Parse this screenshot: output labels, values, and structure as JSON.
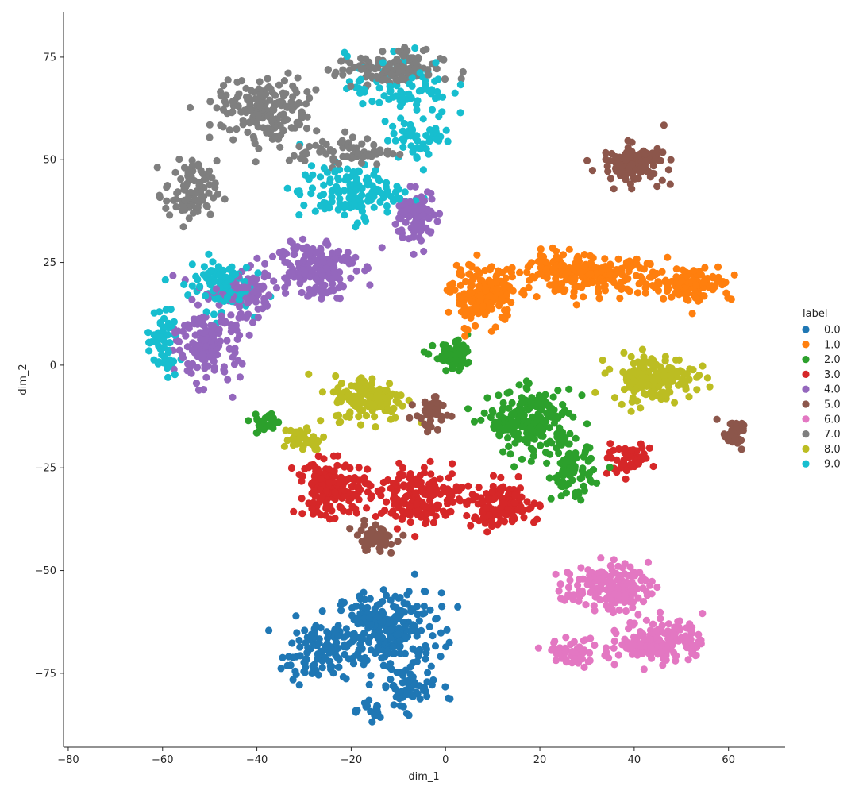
{
  "chart_data": {
    "type": "scatter",
    "title": "",
    "xlabel": "dim_1",
    "ylabel": "dim_2",
    "xlim": [
      -81,
      72
    ],
    "ylim": [
      -93,
      86
    ],
    "xticks": [
      -80,
      -60,
      -40,
      -20,
      0,
      20,
      40,
      60
    ],
    "yticks": [
      -75,
      -50,
      -25,
      0,
      25,
      50,
      75
    ],
    "grid": false,
    "legend": {
      "title": "label",
      "placement": "right"
    },
    "series": [
      {
        "name": "0.0",
        "color": "#1f77b4",
        "clusters": [
          {
            "center": [
              -12,
              -64
            ],
            "spread": [
              10,
              8
            ],
            "n": 230
          },
          {
            "center": [
              -27,
              -70
            ],
            "spread": [
              7,
              6
            ],
            "n": 110
          },
          {
            "center": [
              -8,
              -78
            ],
            "spread": [
              6,
              5
            ],
            "n": 60
          },
          {
            "center": [
              -16,
              -84
            ],
            "spread": [
              4,
              2
            ],
            "n": 20
          }
        ]
      },
      {
        "name": "1.0",
        "color": "#ff7f0e",
        "clusters": [
          {
            "center": [
              8,
              17
            ],
            "spread": [
              6,
              6
            ],
            "n": 200
          },
          {
            "center": [
              30,
              22
            ],
            "spread": [
              12,
              4
            ],
            "n": 220
          },
          {
            "center": [
              52,
              20
            ],
            "spread": [
              8,
              4
            ],
            "n": 110
          },
          {
            "center": [
              22,
              24
            ],
            "spread": [
              4,
              3
            ],
            "n": 30
          }
        ]
      },
      {
        "name": "2.0",
        "color": "#2ca02c",
        "clusters": [
          {
            "center": [
              18,
              -14
            ],
            "spread": [
              8,
              7
            ],
            "n": 220
          },
          {
            "center": [
              27,
              -26
            ],
            "spread": [
              4,
              6
            ],
            "n": 80
          },
          {
            "center": [
              2,
              2
            ],
            "spread": [
              4,
              3
            ],
            "n": 60
          },
          {
            "center": [
              -38,
              -14
            ],
            "spread": [
              3,
              3
            ],
            "n": 25
          }
        ]
      },
      {
        "name": "3.0",
        "color": "#d62728",
        "clusters": [
          {
            "center": [
              -24,
              -30
            ],
            "spread": [
              7,
              6
            ],
            "n": 170
          },
          {
            "center": [
              -5,
              -32
            ],
            "spread": [
              8,
              6
            ],
            "n": 170
          },
          {
            "center": [
              12,
              -34
            ],
            "spread": [
              7,
              5
            ],
            "n": 120
          },
          {
            "center": [
              38,
              -23
            ],
            "spread": [
              5,
              3
            ],
            "n": 50
          }
        ]
      },
      {
        "name": "4.0",
        "color": "#9467bd",
        "clusters": [
          {
            "center": [
              -28,
              24
            ],
            "spread": [
              8,
              7
            ],
            "n": 160
          },
          {
            "center": [
              -6,
              36
            ],
            "spread": [
              4,
              6
            ],
            "n": 90
          },
          {
            "center": [
              -50,
              6
            ],
            "spread": [
              6,
              9
            ],
            "n": 160
          },
          {
            "center": [
              -42,
              18
            ],
            "spread": [
              5,
              5
            ],
            "n": 70
          }
        ]
      },
      {
        "name": "5.0",
        "color": "#8c564b",
        "clusters": [
          {
            "center": [
              40,
              49
            ],
            "spread": [
              6,
              4
            ],
            "n": 120
          },
          {
            "center": [
              -3,
              -12
            ],
            "spread": [
              3,
              4
            ],
            "n": 50
          },
          {
            "center": [
              -15,
              -42
            ],
            "spread": [
              4,
              3
            ],
            "n": 50
          },
          {
            "center": [
              61,
              -17
            ],
            "spread": [
              3,
              3
            ],
            "n": 30
          }
        ]
      },
      {
        "name": "6.0",
        "color": "#e377c2",
        "clusters": [
          {
            "center": [
              34,
              -54
            ],
            "spread": [
              8,
              5
            ],
            "n": 150
          },
          {
            "center": [
              46,
              -67
            ],
            "spread": [
              8,
              5
            ],
            "n": 160
          },
          {
            "center": [
              28,
              -70
            ],
            "spread": [
              6,
              3
            ],
            "n": 60
          }
        ]
      },
      {
        "name": "7.0",
        "color": "#7f7f7f",
        "clusters": [
          {
            "center": [
              -38,
              62
            ],
            "spread": [
              10,
              7
            ],
            "n": 170
          },
          {
            "center": [
              -12,
              72
            ],
            "spread": [
              10,
              4
            ],
            "n": 120
          },
          {
            "center": [
              -54,
              42
            ],
            "spread": [
              5,
              7
            ],
            "n": 90
          },
          {
            "center": [
              -22,
              52
            ],
            "spread": [
              10,
              3
            ],
            "n": 70
          }
        ]
      },
      {
        "name": "8.0",
        "color": "#bcbd22",
        "clusters": [
          {
            "center": [
              -16,
              -8
            ],
            "spread": [
              7,
              5
            ],
            "n": 150
          },
          {
            "center": [
              44,
              -3
            ],
            "spread": [
              8,
              5
            ],
            "n": 160
          },
          {
            "center": [
              -30,
              -18
            ],
            "spread": [
              4,
              3
            ],
            "n": 40
          }
        ]
      },
      {
        "name": "9.0",
        "color": "#17becf",
        "clusters": [
          {
            "center": [
              -20,
              42
            ],
            "spread": [
              10,
              6
            ],
            "n": 140
          },
          {
            "center": [
              -48,
              20
            ],
            "spread": [
              6,
              6
            ],
            "n": 90
          },
          {
            "center": [
              -60,
              5
            ],
            "spread": [
              3,
              8
            ],
            "n": 60
          },
          {
            "center": [
              -10,
              68
            ],
            "spread": [
              10,
              7
            ],
            "n": 80
          },
          {
            "center": [
              -5,
              56
            ],
            "spread": [
              6,
              5
            ],
            "n": 50
          }
        ]
      }
    ]
  }
}
